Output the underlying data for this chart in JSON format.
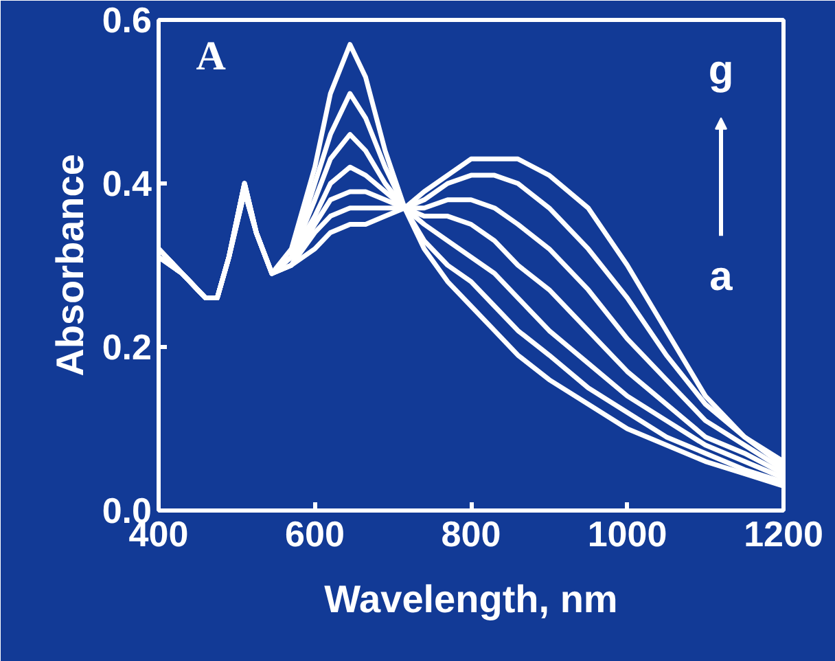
{
  "chart_data": {
    "type": "line",
    "xlabel": "Wavelength, nm",
    "ylabel": "Absorbance",
    "x": [
      400,
      430,
      460,
      475,
      490,
      510,
      525,
      545,
      570,
      600,
      620,
      645,
      665,
      690,
      715,
      740,
      770,
      800,
      830,
      860,
      900,
      950,
      1000,
      1050,
      1100,
      1150,
      1200
    ],
    "series": [
      {
        "color": "#ffffff",
        "values": [
          0.31,
          0.29,
          0.26,
          0.26,
          0.31,
          0.4,
          0.34,
          0.29,
          0.32,
          0.42,
          0.51,
          0.57,
          0.53,
          0.44,
          0.37,
          0.32,
          0.28,
          0.25,
          0.22,
          0.19,
          0.16,
          0.13,
          0.1,
          0.08,
          0.06,
          0.045,
          0.03
        ]
      },
      {
        "color": "#ffffff",
        "values": [
          0.31,
          0.29,
          0.26,
          0.26,
          0.31,
          0.4,
          0.34,
          0.29,
          0.31,
          0.4,
          0.46,
          0.51,
          0.48,
          0.42,
          0.37,
          0.33,
          0.3,
          0.28,
          0.25,
          0.22,
          0.19,
          0.15,
          0.12,
          0.09,
          0.07,
          0.05,
          0.035
        ]
      },
      {
        "color": "#ffffff",
        "values": [
          0.31,
          0.29,
          0.26,
          0.26,
          0.31,
          0.4,
          0.34,
          0.29,
          0.31,
          0.38,
          0.43,
          0.46,
          0.44,
          0.4,
          0.37,
          0.35,
          0.33,
          0.31,
          0.29,
          0.26,
          0.22,
          0.18,
          0.14,
          0.11,
          0.08,
          0.06,
          0.04
        ]
      },
      {
        "color": "#ffffff",
        "values": [
          0.32,
          0.29,
          0.26,
          0.26,
          0.31,
          0.4,
          0.34,
          0.29,
          0.31,
          0.36,
          0.4,
          0.42,
          0.41,
          0.39,
          0.37,
          0.36,
          0.36,
          0.35,
          0.33,
          0.3,
          0.27,
          0.22,
          0.17,
          0.13,
          0.09,
          0.07,
          0.045
        ]
      },
      {
        "color": "#ffffff",
        "values": [
          0.32,
          0.29,
          0.26,
          0.26,
          0.31,
          0.39,
          0.34,
          0.29,
          0.3,
          0.35,
          0.38,
          0.39,
          0.39,
          0.38,
          0.37,
          0.37,
          0.38,
          0.38,
          0.37,
          0.35,
          0.32,
          0.27,
          0.21,
          0.16,
          0.11,
          0.08,
          0.05
        ]
      },
      {
        "color": "#ffffff",
        "values": [
          0.32,
          0.29,
          0.26,
          0.26,
          0.31,
          0.39,
          0.34,
          0.29,
          0.3,
          0.34,
          0.36,
          0.37,
          0.37,
          0.37,
          0.37,
          0.38,
          0.4,
          0.41,
          0.41,
          0.4,
          0.37,
          0.32,
          0.26,
          0.19,
          0.13,
          0.09,
          0.055
        ]
      },
      {
        "color": "#ffffff",
        "values": [
          0.32,
          0.29,
          0.26,
          0.26,
          0.31,
          0.39,
          0.34,
          0.29,
          0.3,
          0.32,
          0.34,
          0.35,
          0.35,
          0.36,
          0.37,
          0.39,
          0.41,
          0.43,
          0.43,
          0.43,
          0.41,
          0.37,
          0.3,
          0.22,
          0.14,
          0.09,
          0.06
        ]
      }
    ],
    "xlim": [
      400,
      1200
    ],
    "ylim": [
      0,
      0.6
    ],
    "xticks": [
      400,
      600,
      800,
      1000,
      1200
    ],
    "yticks": [
      {
        "value": 0,
        "label": "0.0"
      },
      {
        "value": 0.2,
        "label": "0.2"
      },
      {
        "value": 0.4,
        "label": "0.4"
      },
      {
        "value": 0.6,
        "label": "0.6"
      }
    ],
    "annotations": [
      "A",
      "g",
      "a"
    ]
  }
}
